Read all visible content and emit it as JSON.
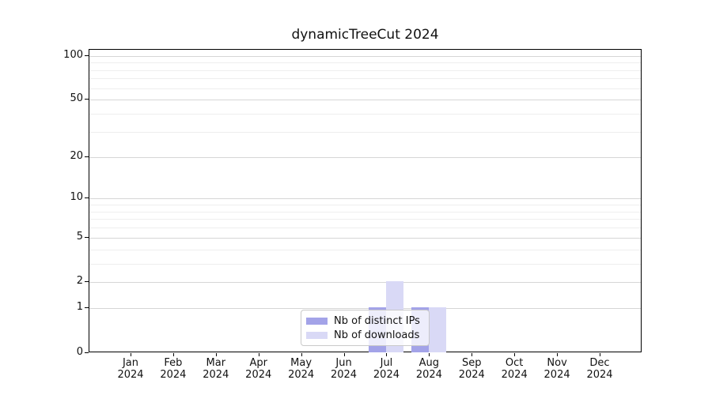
{
  "chart_data": {
    "type": "bar",
    "title": "dynamicTreeCut 2024",
    "categories": [
      "Jan",
      "Feb",
      "Mar",
      "Apr",
      "May",
      "Jun",
      "Jul",
      "Aug",
      "Sep",
      "Oct",
      "Nov",
      "Dec"
    ],
    "category_year": "2024",
    "series": [
      {
        "name": "Nb of distinct IPs",
        "color": "#a3a3e8",
        "values": [
          0,
          0,
          0,
          0,
          0,
          0,
          1,
          1,
          0,
          0,
          0,
          0
        ]
      },
      {
        "name": "Nb of downloads",
        "color": "#d9d9f6",
        "values": [
          0,
          0,
          0,
          0,
          0,
          0,
          2,
          1,
          0,
          0,
          0,
          0
        ]
      }
    ],
    "xlabel": "",
    "ylabel": "",
    "yscale": "log1p",
    "ylim": [
      0,
      110
    ],
    "yticks": [
      0,
      1,
      2,
      5,
      10,
      20,
      50,
      100
    ],
    "yticks_minor": [
      3,
      4,
      6,
      7,
      8,
      9,
      30,
      40,
      60,
      70,
      80,
      90
    ],
    "grid": "horizontal",
    "legend_position": "lower center",
    "colors": {
      "grid_major": "#d6d6d6",
      "grid_minor": "#eeeeee",
      "axis": "#000000",
      "text": "#111111",
      "legend_border": "#c9c9c9",
      "background": "#ffffff"
    }
  }
}
